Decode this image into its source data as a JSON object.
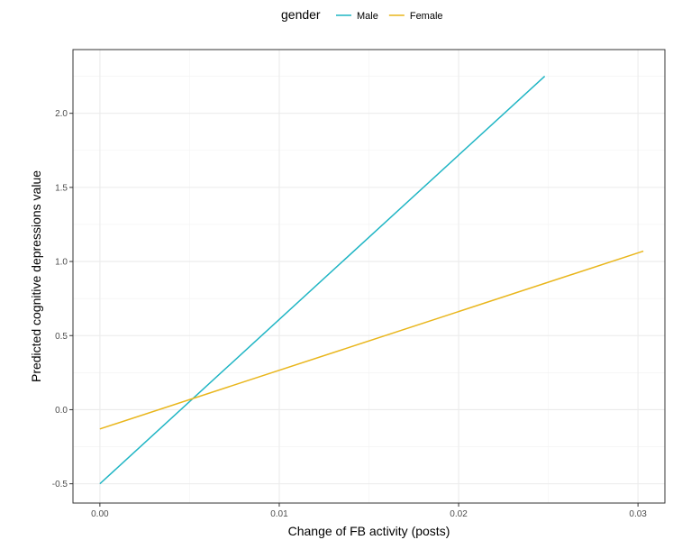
{
  "chart_data": {
    "type": "line",
    "title": "",
    "xlabel": "Change of FB activity (posts)",
    "ylabel": "Predicted cognitive depressions value",
    "xlim": [
      -0.0015,
      0.0315
    ],
    "ylim": [
      -0.63,
      2.43
    ],
    "x_ticks": [
      0.0,
      0.01,
      0.02,
      0.03
    ],
    "x_tick_labels": [
      "0.00",
      "0.01",
      "0.02",
      "0.03"
    ],
    "y_ticks": [
      -0.5,
      0.0,
      0.5,
      1.0,
      1.5,
      2.0
    ],
    "y_tick_labels": [
      "-0.5",
      "0.0",
      "0.5",
      "1.0",
      "1.5",
      "2.0"
    ],
    "grid": true,
    "legend": {
      "title": "gender",
      "position": "top"
    },
    "series": [
      {
        "name": "Male",
        "color": "#1fb5c4",
        "x": [
          0.0,
          0.0248
        ],
        "y": [
          -0.5,
          2.25
        ]
      },
      {
        "name": "Female",
        "color": "#e9b61c",
        "x": [
          0.0,
          0.0303
        ],
        "y": [
          -0.13,
          1.07
        ]
      }
    ]
  }
}
